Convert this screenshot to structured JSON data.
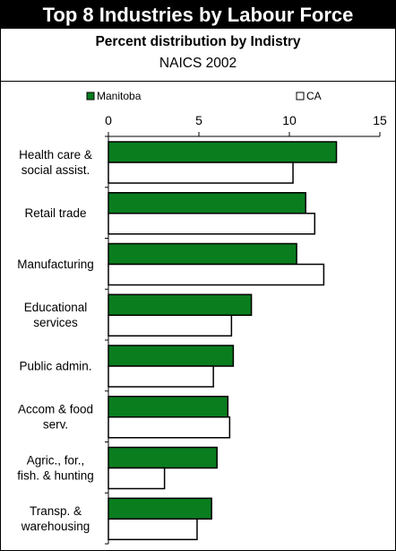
{
  "header": {
    "title": "Top 8 Industries by Labour Force",
    "subtitle": "Percent distribution by Indistry",
    "subtitle2": "NAICS 2002"
  },
  "colors": {
    "manitoba": "#0a7d1f",
    "ca": "#ffffff",
    "bar_stroke": "#000000"
  },
  "chart_data": {
    "type": "bar",
    "orientation": "horizontal",
    "categories": [
      [
        "Health care &",
        "social assist."
      ],
      [
        "Retail trade"
      ],
      [
        "Manufacturing"
      ],
      [
        "Educational",
        "services"
      ],
      [
        "Public admin."
      ],
      [
        "Accom & food",
        "serv."
      ],
      [
        "Agric., for.,",
        "fish. & hunting"
      ],
      [
        "Transp. &",
        "warehousing"
      ]
    ],
    "series": [
      {
        "name": "Manitoba",
        "values": [
          12.6,
          10.9,
          10.4,
          7.9,
          6.9,
          6.6,
          6.0,
          5.7
        ]
      },
      {
        "name": "CA",
        "values": [
          10.2,
          11.4,
          11.9,
          6.8,
          5.8,
          6.7,
          3.1,
          4.9
        ]
      }
    ],
    "xlim": [
      0,
      15
    ],
    "xticks": [
      0,
      5,
      10,
      15
    ],
    "legend_position": "top"
  }
}
